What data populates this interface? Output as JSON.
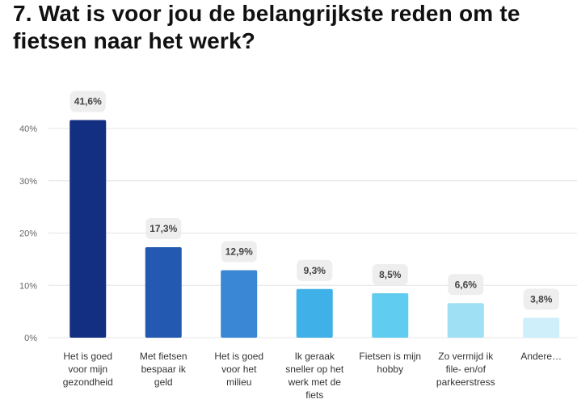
{
  "title": "7. Wat is voor jou de belangrijkste reden om te fietsen naar het werk?",
  "chart_data": {
    "type": "bar",
    "title": "7. Wat is voor jou de belangrijkste reden om te fietsen naar het werk?",
    "xlabel": "",
    "ylabel": "",
    "ylim": [
      0,
      40
    ],
    "y_ticks": [
      "0%",
      "10%",
      "20%",
      "30%",
      "40%"
    ],
    "grid": true,
    "categories": [
      [
        "Het is goed",
        "voor mijn",
        "gezondheid"
      ],
      [
        "Met fietsen",
        "bespaar ik",
        "geld"
      ],
      [
        "Het is goed",
        "voor het",
        "milieu"
      ],
      [
        "Ik geraak",
        "sneller op het",
        "werk met de",
        "fiets"
      ],
      [
        "Fietsen is mijn",
        "hobby"
      ],
      [
        "Zo vermijd ik",
        "file- en/of",
        "parkeerstress"
      ],
      [
        "Andere…"
      ]
    ],
    "values": [
      41.6,
      17.3,
      12.9,
      9.3,
      8.5,
      6.6,
      3.8
    ],
    "value_labels": [
      "41,6%",
      "17,3%",
      "12,9%",
      "9,3%",
      "8,5%",
      "6,6%",
      "3,8%"
    ],
    "colors": [
      "#132f82",
      "#2359b0",
      "#3a87d6",
      "#3fb0e8",
      "#60cdf0",
      "#9fe0f5",
      "#cfeffa"
    ]
  }
}
